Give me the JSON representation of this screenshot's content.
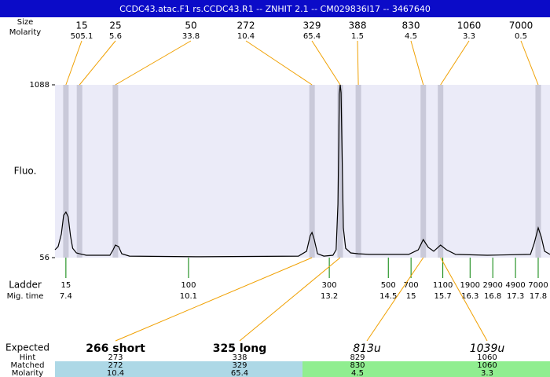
{
  "header": {
    "title": "CCDC43.atac.F1  rs.CCDC43.R1 -- ZNHIT 2.1 -- CM029836I17 -- 3467640"
  },
  "chart_data": {
    "type": "electropherogram",
    "y_label": "Fluo.",
    "ylim": [
      56,
      1088
    ],
    "yticks": [
      56,
      1088
    ],
    "xlim": [
      7.16,
      18.06
    ],
    "trace": {
      "color": "#000000",
      "x": [
        7.16,
        7.23,
        7.3,
        7.35,
        7.4,
        7.45,
        7.5,
        7.55,
        7.63,
        7.7,
        7.85,
        8.37,
        8.44,
        8.49,
        8.56,
        8.63,
        8.8,
        10.27,
        12.52,
        12.7,
        12.78,
        12.82,
        12.87,
        12.94,
        13.08,
        13.28,
        13.35,
        13.39,
        13.41,
        13.42,
        13.44,
        13.46,
        13.48,
        13.51,
        13.56,
        13.67,
        13.84,
        14.08,
        14.95,
        15.16,
        15.27,
        15.38,
        15.5,
        15.65,
        15.78,
        15.98,
        16.68,
        17.63,
        17.71,
        17.8,
        17.87,
        17.94,
        18.06
      ],
      "y": [
        103,
        122,
        197,
        309,
        328,
        300,
        187,
        112,
        84,
        79,
        70,
        70,
        103,
        131,
        122,
        79,
        65,
        61,
        65,
        94,
        187,
        206,
        164,
        79,
        65,
        70,
        103,
        375,
        750,
        1032,
        1088,
        1041,
        703,
        234,
        112,
        84,
        79,
        75,
        75,
        103,
        164,
        117,
        94,
        131,
        103,
        75,
        70,
        75,
        140,
        234,
        178,
        94,
        75
      ]
    },
    "peaks": {
      "size_label": "Size",
      "molarity_label": "Molarity",
      "line_color": "#f0a000",
      "band_color": "#c9c9d9",
      "sizes": [
        15,
        25,
        50,
        272,
        329,
        388,
        830,
        1060,
        7000
      ],
      "molarity": [
        505.1,
        5.6,
        33.8,
        10.4,
        65.4,
        1.5,
        4.5,
        3.3,
        0.5
      ],
      "times": [
        7.4,
        7.7,
        8.49,
        12.82,
        13.44,
        13.84,
        15.27,
        15.65,
        17.8
      ]
    },
    "ladder": {
      "label": "Ladder",
      "time_label": "Mig. time",
      "color": "#008000",
      "sizes": [
        15,
        100,
        300,
        500,
        700,
        1100,
        1900,
        2900,
        4900,
        7000
      ],
      "times": [
        7.4,
        10.1,
        13.2,
        14.5,
        15,
        15.7,
        16.3,
        16.8,
        17.3,
        17.8
      ]
    },
    "expected": {
      "label": "Expected",
      "items": [
        {
          "text": "266 short",
          "style": "bold"
        },
        {
          "text": "325 long",
          "style": "bold"
        },
        {
          "text": "813u",
          "style": "italic"
        },
        {
          "text": "1039u",
          "style": "italic"
        }
      ]
    },
    "table": {
      "row_labels": [
        "Hint",
        "Matched",
        "Molarity"
      ],
      "rows": [
        [
          273,
          338,
          829,
          1060
        ],
        [
          272,
          329,
          830,
          1060
        ],
        [
          10.4,
          65.4,
          4.5,
          3.3
        ]
      ]
    }
  }
}
